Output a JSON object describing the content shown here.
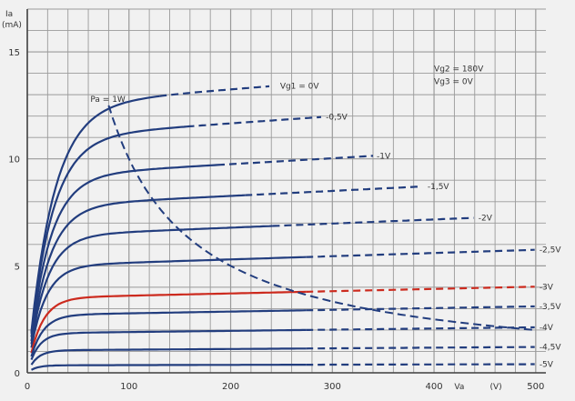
{
  "chart_data": {
    "type": "line",
    "ylabel": "Ia",
    "yunit": "(mA)",
    "xlabel": "Va",
    "xunit": "(V)",
    "xlim": [
      0,
      510
    ],
    "ylim": [
      0,
      17
    ],
    "xticks": [
      0,
      100,
      200,
      300,
      400,
      500
    ],
    "yticks": [
      0,
      5,
      10,
      15
    ],
    "grid": true,
    "conditions": [
      "Vg2 = 180V",
      "Vg3 = 0V"
    ],
    "series": [
      {
        "name": "Vg1 = 0V",
        "color": "#223d7e",
        "saturation": 12.5,
        "knee": 24,
        "xmax": 240,
        "label_at": 245
      },
      {
        "name": "-0,5V",
        "color": "#223d7e",
        "saturation": 11.0,
        "knee": 22,
        "xmax": 290,
        "label_at": 290
      },
      {
        "name": "-1V",
        "color": "#223d7e",
        "saturation": 9.2,
        "knee": 20,
        "xmax": 340,
        "label_at": 340
      },
      {
        "name": "-1,5V",
        "color": "#223d7e",
        "saturation": 7.8,
        "knee": 19,
        "xmax": 390,
        "label_at": 390
      },
      {
        "name": "-2V",
        "color": "#223d7e",
        "saturation": 6.4,
        "knee": 17,
        "xmax": 440,
        "label_at": 440
      },
      {
        "name": "-2,5V",
        "color": "#223d7e",
        "saturation": 5.0,
        "knee": 15,
        "xmax": 500,
        "label_at": 500
      },
      {
        "name": "-3V",
        "color": "#cc2a1e",
        "saturation": 3.5,
        "knee": 13,
        "xmax": 500,
        "label_at": 500
      },
      {
        "name": "-3,5V",
        "color": "#223d7e",
        "saturation": 2.7,
        "knee": 12,
        "xmax": 500,
        "label_at": 500
      },
      {
        "name": "-4V",
        "color": "#223d7e",
        "saturation": 1.85,
        "knee": 10,
        "xmax": 500,
        "label_at": 500
      },
      {
        "name": "-4,5V",
        "color": "#223d7e",
        "saturation": 1.05,
        "knee": 9,
        "xmax": 500,
        "label_at": 500
      },
      {
        "name": "-5V",
        "color": "#223d7e",
        "saturation": 0.35,
        "knee": 8,
        "xmax": 500,
        "label_at": 500
      }
    ],
    "power_curve": {
      "name": "Pa = 1W",
      "watts": 1,
      "xmin": 80,
      "xmax": 500,
      "color": "#223d7e"
    }
  }
}
